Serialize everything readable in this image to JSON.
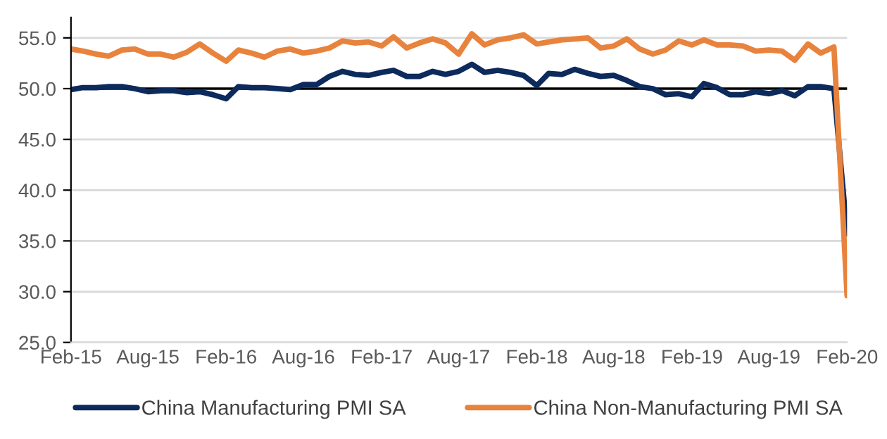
{
  "chart_data": {
    "type": "line",
    "x": [
      "2015-02",
      "2015-03",
      "2015-04",
      "2015-05",
      "2015-06",
      "2015-07",
      "2015-08",
      "2015-09",
      "2015-10",
      "2015-11",
      "2015-12",
      "2016-01",
      "2016-02",
      "2016-03",
      "2016-04",
      "2016-05",
      "2016-06",
      "2016-07",
      "2016-08",
      "2016-09",
      "2016-10",
      "2016-11",
      "2016-12",
      "2017-01",
      "2017-02",
      "2017-03",
      "2017-04",
      "2017-05",
      "2017-06",
      "2017-07",
      "2017-08",
      "2017-09",
      "2017-10",
      "2017-11",
      "2017-12",
      "2018-01",
      "2018-02",
      "2018-03",
      "2018-04",
      "2018-05",
      "2018-06",
      "2018-07",
      "2018-08",
      "2018-09",
      "2018-10",
      "2018-11",
      "2018-12",
      "2019-01",
      "2019-02",
      "2019-03",
      "2019-04",
      "2019-05",
      "2019-06",
      "2019-07",
      "2019-08",
      "2019-09",
      "2019-10",
      "2019-11",
      "2019-12",
      "2020-01",
      "2020-02"
    ],
    "series": [
      {
        "name": "China Manufacturing PMI SA",
        "color": "#0c2a5c",
        "values": [
          49.9,
          50.1,
          50.1,
          50.2,
          50.2,
          50.0,
          49.7,
          49.8,
          49.8,
          49.6,
          49.7,
          49.4,
          49.0,
          50.2,
          50.1,
          50.1,
          50.0,
          49.9,
          50.4,
          50.4,
          51.2,
          51.7,
          51.4,
          51.3,
          51.6,
          51.8,
          51.2,
          51.2,
          51.7,
          51.4,
          51.7,
          52.4,
          51.6,
          51.8,
          51.6,
          51.3,
          50.3,
          51.5,
          51.4,
          51.9,
          51.5,
          51.2,
          51.3,
          50.8,
          50.2,
          50.0,
          49.4,
          49.5,
          49.2,
          50.5,
          50.1,
          49.4,
          49.4,
          49.7,
          49.5,
          49.8,
          49.3,
          50.2,
          50.2,
          50.0,
          35.7
        ]
      },
      {
        "name": "China Non-Manufacturing PMI SA",
        "color": "#e8833d",
        "values": [
          53.9,
          53.7,
          53.4,
          53.2,
          53.8,
          53.9,
          53.4,
          53.4,
          53.1,
          53.6,
          54.4,
          53.5,
          52.7,
          53.8,
          53.5,
          53.1,
          53.7,
          53.9,
          53.5,
          53.7,
          54.0,
          54.7,
          54.5,
          54.6,
          54.2,
          55.1,
          54.0,
          54.5,
          54.9,
          54.5,
          53.4,
          55.4,
          54.3,
          54.8,
          55.0,
          55.3,
          54.4,
          54.6,
          54.8,
          54.9,
          55.0,
          54.0,
          54.2,
          54.9,
          53.9,
          53.4,
          53.8,
          54.7,
          54.3,
          54.8,
          54.3,
          54.3,
          54.2,
          53.7,
          53.8,
          53.7,
          52.8,
          54.4,
          53.5,
          54.1,
          29.6
        ]
      }
    ],
    "xlim": [
      "2015-02",
      "2020-02"
    ],
    "xticks": [
      {
        "value": "2015-02",
        "label": "Feb-15"
      },
      {
        "value": "2015-08",
        "label": "Aug-15"
      },
      {
        "value": "2016-02",
        "label": "Feb-16"
      },
      {
        "value": "2016-08",
        "label": "Aug-16"
      },
      {
        "value": "2017-02",
        "label": "Feb-17"
      },
      {
        "value": "2017-08",
        "label": "Aug-17"
      },
      {
        "value": "2018-02",
        "label": "Feb-18"
      },
      {
        "value": "2018-08",
        "label": "Aug-18"
      },
      {
        "value": "2019-02",
        "label": "Feb-19"
      },
      {
        "value": "2019-08",
        "label": "Aug-19"
      },
      {
        "value": "2020-02",
        "label": "Feb-20"
      }
    ],
    "ylim": [
      25,
      57
    ],
    "yticks": [
      {
        "value": 25,
        "label": "25.0"
      },
      {
        "value": 30,
        "label": "30.0"
      },
      {
        "value": 35,
        "label": "35.0"
      },
      {
        "value": 40,
        "label": "40.0"
      },
      {
        "value": 45,
        "label": "45.0"
      },
      {
        "value": 50,
        "label": "50.0"
      },
      {
        "value": 55,
        "label": "55.0"
      }
    ],
    "ref_lines": [
      {
        "axis": "y",
        "value": 50,
        "color": "#000000"
      }
    ],
    "grid": "y",
    "legend": "bottom",
    "line_style": "solid",
    "marker": "none"
  }
}
